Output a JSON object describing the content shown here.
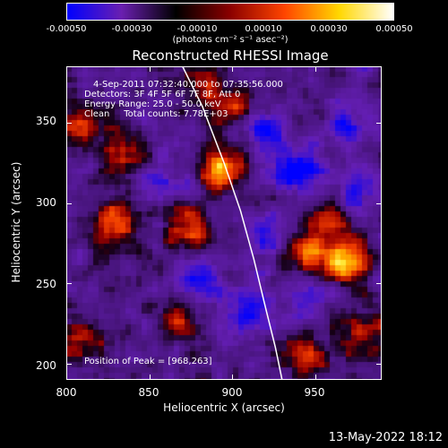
{
  "colorbar": {
    "tick_labels": [
      "-0.00050",
      "-0.00030",
      "-0.00010",
      "0.00010",
      "0.00030",
      "0.00050"
    ],
    "units_label": "(photons cm⁻² s⁻¹ asec⁻²)",
    "colors": [
      "#0000ff",
      "#6a1fb0",
      "#000000",
      "#8b0000",
      "#ff4500",
      "#ffd700",
      "#ffffff"
    ]
  },
  "title": "Reconstructed RHESSI Image",
  "annotations": {
    "time_range": "4-Sep-2011 07:32:40.000 to 07:35:56.000",
    "detectors": "Detectors: 3F 4F 5F 6F 7F 8F, Att 0",
    "energy_range": "Energy Range: 25.0 - 50.0 keV",
    "algorithm": "Clean     Total counts: 7.78E+03",
    "peak": "Position of Peak = [968,263]"
  },
  "x_axis": {
    "label": "Heliocentric X (arcsec)",
    "ticks": [
      "800",
      "850",
      "900",
      "950"
    ]
  },
  "y_axis": {
    "label": "Heliocentric Y (arcsec)",
    "ticks": [
      "250",
      "300",
      "350",
      "200"
    ]
  },
  "footer": {
    "date": "13-May-2022 18:12"
  },
  "chart_data": {
    "type": "heatmap",
    "xlim": [
      800,
      990
    ],
    "ylim": [
      190,
      385
    ],
    "x_ticks": [
      800,
      850,
      900,
      950
    ],
    "y_ticks": [
      200,
      250,
      300,
      350
    ],
    "colorbar_range": [
      -0.0005,
      0.0005
    ],
    "peak_position": [
      968,
      263
    ],
    "limb_curve": [
      [
        870,
        385
      ],
      [
        882,
        360
      ],
      [
        895,
        325
      ],
      [
        905,
        295
      ],
      [
        913,
        265
      ],
      [
        920,
        235
      ],
      [
        926,
        210
      ],
      [
        930,
        190
      ]
    ],
    "bright_sources": [
      {
        "x": 893,
        "y": 322,
        "level": 0.95
      },
      {
        "x": 968,
        "y": 263,
        "level": 1.0
      },
      {
        "x": 830,
        "y": 287,
        "level": 0.85
      },
      {
        "x": 875,
        "y": 285,
        "level": 0.75
      },
      {
        "x": 900,
        "y": 360,
        "level": 0.7
      },
      {
        "x": 810,
        "y": 350,
        "level": 0.7
      },
      {
        "x": 835,
        "y": 330,
        "level": 0.6
      },
      {
        "x": 945,
        "y": 270,
        "level": 0.7
      },
      {
        "x": 960,
        "y": 290,
        "level": 0.6
      },
      {
        "x": 945,
        "y": 205,
        "level": 0.65
      },
      {
        "x": 810,
        "y": 215,
        "level": 0.55
      },
      {
        "x": 865,
        "y": 230,
        "level": 0.45
      },
      {
        "x": 980,
        "y": 220,
        "level": 0.55
      },
      {
        "x": 880,
        "y": 375,
        "level": 0.5
      }
    ],
    "dark_sources": [
      {
        "x": 940,
        "y": 320,
        "level": -0.8
      },
      {
        "x": 920,
        "y": 345,
        "level": -0.7
      },
      {
        "x": 970,
        "y": 345,
        "level": -0.6
      },
      {
        "x": 880,
        "y": 250,
        "level": -0.6
      },
      {
        "x": 910,
        "y": 235,
        "level": -0.7
      },
      {
        "x": 945,
        "y": 240,
        "level": -0.5
      },
      {
        "x": 975,
        "y": 305,
        "level": -0.6
      },
      {
        "x": 860,
        "y": 315,
        "level": -0.4
      },
      {
        "x": 920,
        "y": 280,
        "level": -0.5
      }
    ]
  }
}
